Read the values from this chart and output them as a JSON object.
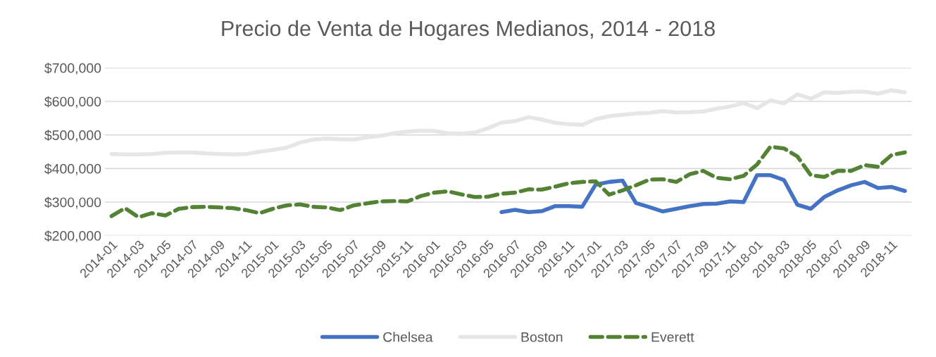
{
  "chart_data": {
    "type": "line",
    "title": "Precio de Venta de Hogares Medianos, 2014 - 2018",
    "categories": [
      "2014-01",
      null,
      "2014-03",
      null,
      "2014-05",
      null,
      "2014-07",
      null,
      "2014-09",
      null,
      "2014-11",
      null,
      "2015-01",
      null,
      "2015-03",
      null,
      "2015-05",
      null,
      "2015-07",
      null,
      "2015-09",
      null,
      "2015-11",
      null,
      "2016-01",
      null,
      "2016-03",
      null,
      "2016-05",
      null,
      "2016-07",
      null,
      "2016-09",
      null,
      "2016-11",
      null,
      "2017-01",
      null,
      "2017-03",
      null,
      "2017-05",
      null,
      "2017-07",
      null,
      "2017-09",
      null,
      "2017-11",
      null,
      "2018-01",
      null,
      "2018-03",
      null,
      "2018-05",
      null,
      "2018-07",
      null,
      "2018-09",
      null,
      "2018-11",
      null
    ],
    "series": [
      {
        "name": "Chelsea",
        "color": "#4472c4",
        "line_style": "solid",
        "values": [
          null,
          null,
          null,
          null,
          null,
          null,
          null,
          null,
          null,
          null,
          null,
          null,
          null,
          null,
          null,
          null,
          null,
          null,
          null,
          null,
          null,
          null,
          null,
          null,
          null,
          null,
          null,
          null,
          null,
          270000,
          277000,
          270000,
          273000,
          288000,
          288000,
          286000,
          352000,
          360000,
          364000,
          297000,
          285000,
          272000,
          280000,
          288000,
          294000,
          295000,
          302000,
          300000,
          380000,
          380000,
          366000,
          292000,
          280000,
          315000,
          335000,
          350000,
          360000,
          342000,
          345000,
          333000
        ]
      },
      {
        "name": "Boston",
        "color": "#e7e6e6",
        "line_style": "solid",
        "values": [
          443000,
          442000,
          442000,
          443000,
          447000,
          448000,
          448000,
          445000,
          443000,
          442000,
          443000,
          450000,
          455000,
          462000,
          477000,
          486000,
          489000,
          487000,
          486000,
          493000,
          497000,
          505000,
          510000,
          513000,
          512000,
          505000,
          504000,
          507000,
          520000,
          537000,
          541000,
          553000,
          546000,
          536000,
          532000,
          530000,
          547000,
          556000,
          560000,
          564000,
          566000,
          571000,
          567000,
          568000,
          570000,
          578000,
          585000,
          595000,
          580000,
          603000,
          594000,
          621000,
          608000,
          627000,
          625000,
          629000,
          629000,
          623000,
          633000,
          627000
        ]
      },
      {
        "name": "Everett",
        "color": "#548235",
        "line_style": "dashed",
        "values": [
          258000,
          282000,
          255000,
          267000,
          260000,
          280000,
          285000,
          286000,
          284000,
          282000,
          276000,
          267000,
          280000,
          290000,
          293000,
          286000,
          284000,
          276000,
          290000,
          296000,
          302000,
          303000,
          302000,
          318000,
          328000,
          332000,
          323000,
          315000,
          316000,
          325000,
          328000,
          338000,
          337000,
          346000,
          356000,
          360000,
          362000,
          322000,
          335000,
          350000,
          367000,
          368000,
          360000,
          383000,
          393000,
          372000,
          368000,
          378000,
          412000,
          465000,
          460000,
          436000,
          380000,
          375000,
          393000,
          393000,
          410000,
          405000,
          440000,
          448000
        ]
      }
    ],
    "ylim": [
      200000,
      700000
    ],
    "yticks": [
      {
        "value": 200000,
        "label": "$200,000"
      },
      {
        "value": 300000,
        "label": "$300,000"
      },
      {
        "value": 400000,
        "label": "$400,000"
      },
      {
        "value": 500000,
        "label": "$500,000"
      },
      {
        "value": 600000,
        "label": "$600,000"
      },
      {
        "value": 700000,
        "label": "$700,000"
      }
    ],
    "grid": "y",
    "legend": "bottom"
  }
}
